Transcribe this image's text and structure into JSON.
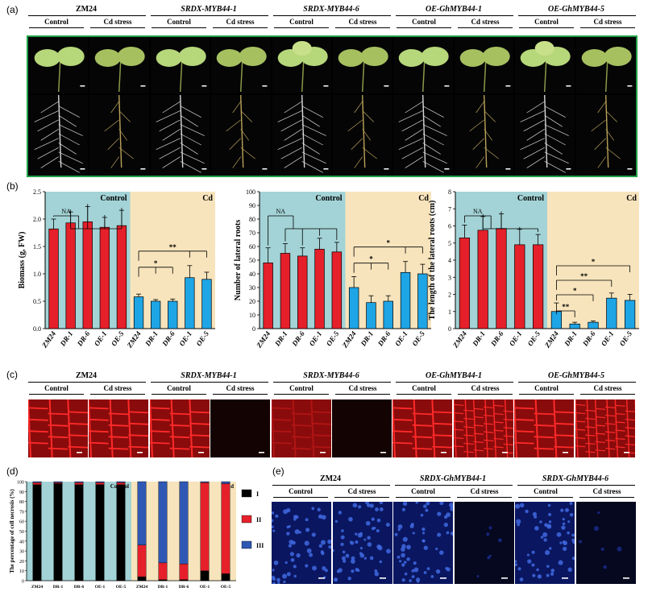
{
  "panel_a": {
    "label": "(a)",
    "genotypes": [
      "ZM24",
      "SRDX-MYB44-1",
      "SRDX-MYB44-6",
      "OE-GhMYB44-1",
      "OE-GhMYB44-5"
    ],
    "conditions": [
      "Control",
      "Cd stress"
    ]
  },
  "panel_b": {
    "label": "(b)",
    "bg_colors": {
      "control": "#a3d3d6",
      "cd": "#f7e4bc"
    },
    "bar_colors": {
      "control": "#e5202a",
      "cd": "#1ea5e6"
    },
    "charts": [
      {
        "type": "bar",
        "ylabel": "Biomass (g, FW)",
        "ylim": [
          0,
          2.5
        ],
        "yticks": [
          "0.0",
          "0.5",
          "1.0",
          "1.5",
          "2.0",
          "2.5"
        ],
        "categories": [
          "ZM24",
          "DR-1",
          "DR-6",
          "OE-1",
          "OE-5",
          "ZM24",
          "DR-1",
          "DR-6",
          "OE-1",
          "OE-5"
        ],
        "groups": [
          "Control",
          "Cd"
        ],
        "values": [
          1.82,
          1.93,
          1.95,
          1.85,
          1.88,
          0.58,
          0.5,
          0.5,
          0.93,
          0.9
        ],
        "errors": [
          0.18,
          0.2,
          0.28,
          0.18,
          0.28,
          0.05,
          0.03,
          0.04,
          0.22,
          0.13
        ],
        "annotations": [
          "NA",
          "*",
          "**"
        ]
      },
      {
        "type": "bar",
        "ylabel": "Number of lateral roots",
        "ylim": [
          0,
          100
        ],
        "yticks": [
          "0",
          "10",
          "20",
          "30",
          "40",
          "50",
          "60",
          "70",
          "80",
          "90",
          "100"
        ],
        "categories": [
          "ZM24",
          "DR-1",
          "DR-6",
          "OE-1",
          "OE-5",
          "ZM24",
          "DR-1",
          "DR-6",
          "OE-1",
          "OE-5"
        ],
        "groups": [
          "Control",
          "Cd"
        ],
        "values": [
          48,
          55,
          53,
          58,
          56,
          30,
          19,
          20,
          41,
          40
        ],
        "errors": [
          11,
          7,
          6,
          8,
          7,
          8,
          5,
          4,
          8,
          7
        ],
        "annotations": [
          "NA",
          "*",
          "*"
        ]
      },
      {
        "type": "bar",
        "ylabel": "The length of the lateral roots (cm)",
        "ylim": [
          0,
          8
        ],
        "yticks": [
          "0",
          "1",
          "2",
          "3",
          "4",
          "5",
          "6",
          "7",
          "8"
        ],
        "categories": [
          "ZM24",
          "DR-1",
          "DR-6",
          "OE-1",
          "OE-5",
          "ZM24",
          "DR-1",
          "DR-6",
          "OE-1",
          "OE-5"
        ],
        "groups": [
          "Control",
          "Cd"
        ],
        "values": [
          5.3,
          5.75,
          5.85,
          4.9,
          4.9,
          1.0,
          0.27,
          0.37,
          1.78,
          1.65
        ],
        "errors": [
          0.75,
          0.8,
          0.85,
          0.9,
          0.6,
          0.5,
          0.1,
          0.08,
          0.3,
          0.35
        ],
        "annotations": [
          "NA",
          "**",
          "*",
          "**",
          "*"
        ]
      }
    ]
  },
  "panel_c": {
    "label": "(c)",
    "genotypes": [
      "ZM24",
      "SRDX-MYB44-1",
      "SRDX-MYB44-6",
      "OE-GhMYB44-1",
      "OE-GhMYB44-5"
    ],
    "conditions": [
      "Control",
      "Cd stress"
    ]
  },
  "panel_d": {
    "label": "(d)",
    "chart_data": {
      "type": "bar",
      "stacked": true,
      "ylabel": "The percentage of cell necrosis (%)",
      "ylim": [
        0,
        100
      ],
      "yticks": [
        "0",
        "10",
        "20",
        "30",
        "40",
        "50",
        "60",
        "70",
        "80",
        "90",
        "100"
      ],
      "categories": [
        "ZM24",
        "DR-1",
        "DR-6",
        "OE-1",
        "OE-5",
        "ZM24",
        "DR-1",
        "DR-6",
        "OE-1",
        "OE-5"
      ],
      "groups": [
        "Control",
        "Cd"
      ],
      "series": [
        {
          "name": "I",
          "color": "#000000",
          "values": [
            97,
            98,
            97,
            97,
            97,
            4,
            1,
            1,
            10,
            7
          ]
        },
        {
          "name": "II",
          "color": "#e5202a",
          "values": [
            2,
            1,
            2,
            2,
            2,
            32,
            17,
            16,
            89,
            91
          ]
        },
        {
          "name": "III",
          "color": "#2f58b4",
          "values": [
            1,
            1,
            1,
            1,
            1,
            64,
            82,
            83,
            1,
            2
          ]
        }
      ],
      "legend": [
        "I",
        "II",
        "III"
      ]
    }
  },
  "panel_e": {
    "label": "(e)",
    "genotypes": [
      "ZM24",
      "SRDX-GhMYB44-1",
      "SRDX-GhMYB44-6"
    ],
    "conditions": [
      "Control",
      "Cd stress"
    ]
  }
}
